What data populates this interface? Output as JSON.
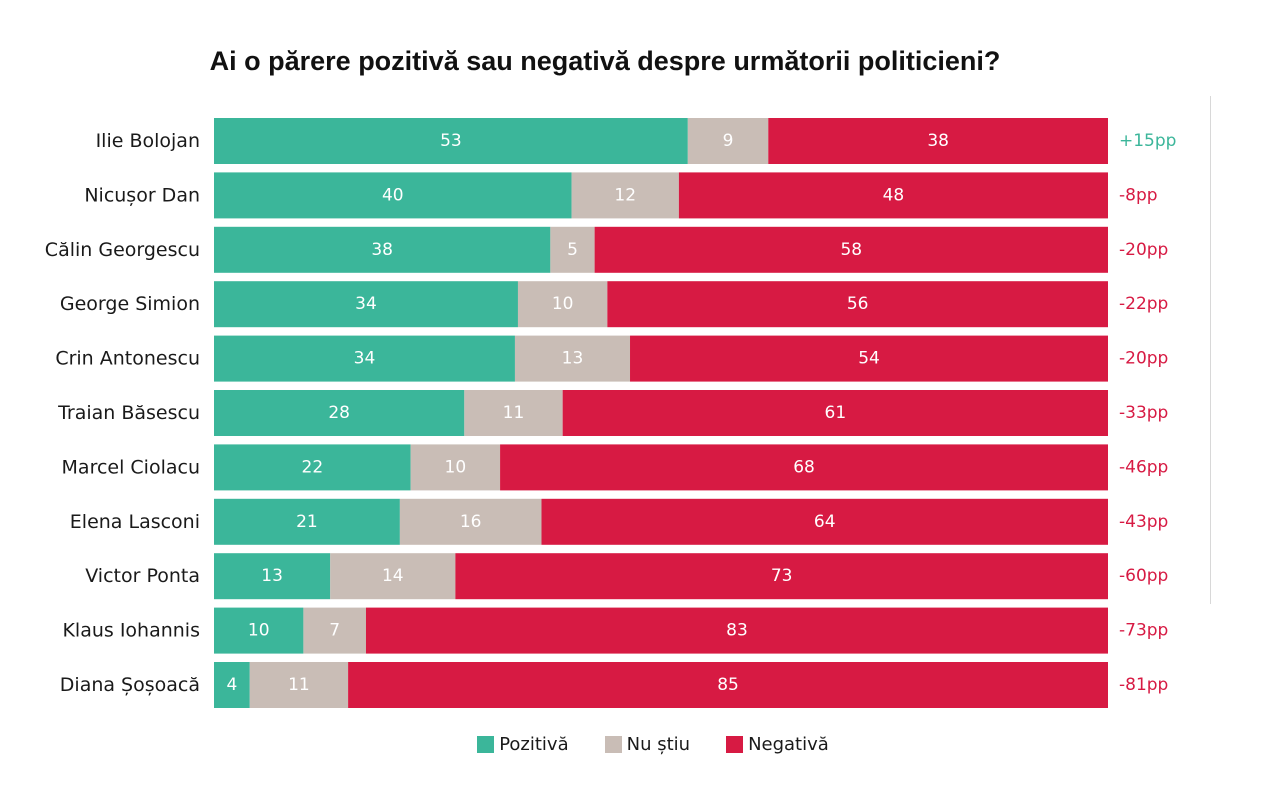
{
  "chart_data": {
    "type": "bar",
    "orientation": "horizontal",
    "stacked": true,
    "title": "Ai o părere pozitivă sau negativă despre următorii politicieni?",
    "categories": [
      "Ilie Bolojan",
      "Nicușor Dan",
      "Călin Georgescu",
      "George Simion",
      "Crin Antonescu",
      "Traian Băsescu",
      "Marcel Ciolacu",
      "Elena Lasconi",
      "Victor Ponta",
      "Klaus Iohannis",
      "Diana Șoșoacă"
    ],
    "series": [
      {
        "name": "Pozitivă",
        "color": "#3bb69a",
        "values": [
          53,
          40,
          38,
          34,
          34,
          28,
          22,
          21,
          13,
          10,
          4
        ]
      },
      {
        "name": "Nu știu",
        "color": "#c9bdb6",
        "values": [
          9,
          12,
          5,
          10,
          13,
          11,
          10,
          16,
          14,
          7,
          11
        ]
      },
      {
        "name": "Negativă",
        "color": "#d71a43",
        "values": [
          38,
          48,
          58,
          56,
          54,
          61,
          68,
          64,
          73,
          83,
          85
        ]
      }
    ],
    "net_labels": [
      "+15pp",
      "-8pp",
      "-20pp",
      "-22pp",
      "-20pp",
      "-33pp",
      "-46pp",
      "-43pp",
      "-60pp",
      "-73pp",
      "-81pp"
    ],
    "net_colors": {
      "positive": "#3bb69a",
      "negative": "#d71a43"
    },
    "legend_position": "bottom"
  }
}
